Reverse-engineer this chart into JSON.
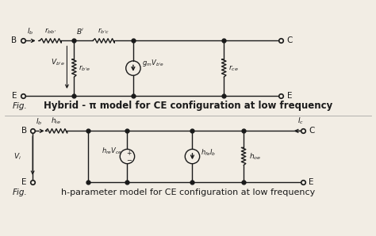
{
  "bg_color": "#f2ede4",
  "line_color": "#1a1a1a",
  "title1": "Hybrid - π model for CE configuration at low frequency",
  "title2": "h-parameter model for CE configuration at low frequency",
  "fig_label": "Fig.",
  "fs_title": 8.5,
  "fs_label": 7.5,
  "fs_small": 6.5
}
